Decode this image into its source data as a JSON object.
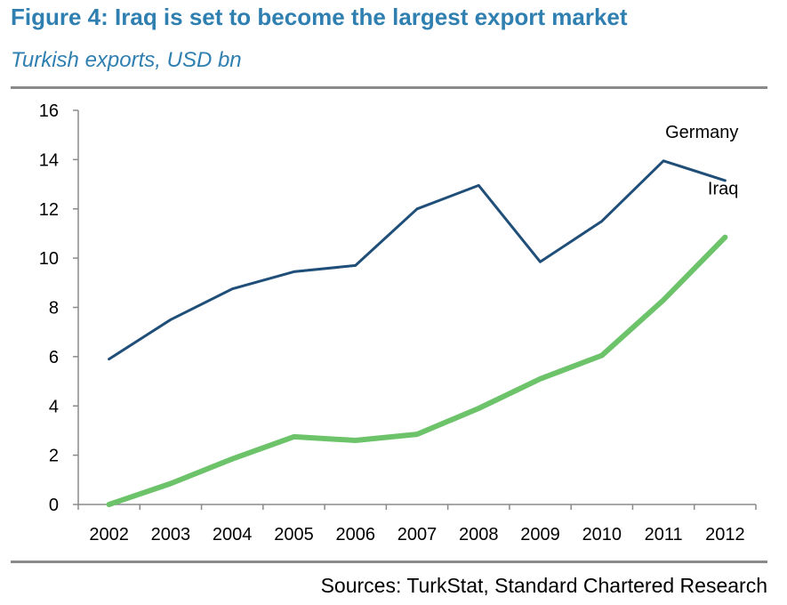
{
  "title": "Figure 4: Iraq is set to become the largest export market",
  "subtitle": "Turkish exports, USD bn",
  "source": "Sources: TurkStat, Standard Chartered Research",
  "chart_data": {
    "type": "line",
    "x": [
      "2002",
      "2003",
      "2004",
      "2005",
      "2006",
      "2007",
      "2008",
      "2009",
      "2010",
      "2011",
      "2012"
    ],
    "ylim": [
      0,
      16
    ],
    "yticks": [
      0,
      2,
      4,
      6,
      8,
      10,
      12,
      14,
      16
    ],
    "grid": false,
    "series": [
      {
        "name": "Germany",
        "color": "#1f4e79",
        "width": 3,
        "values": [
          5.9,
          7.5,
          8.75,
          9.45,
          9.7,
          12.0,
          12.95,
          9.85,
          11.5,
          13.95,
          13.15
        ]
      },
      {
        "name": "Iraq",
        "color": "#6cc36a",
        "width": 6,
        "values": [
          0.0,
          0.85,
          1.85,
          2.75,
          2.6,
          2.85,
          3.9,
          5.1,
          6.05,
          8.3,
          10.85
        ]
      }
    ]
  }
}
